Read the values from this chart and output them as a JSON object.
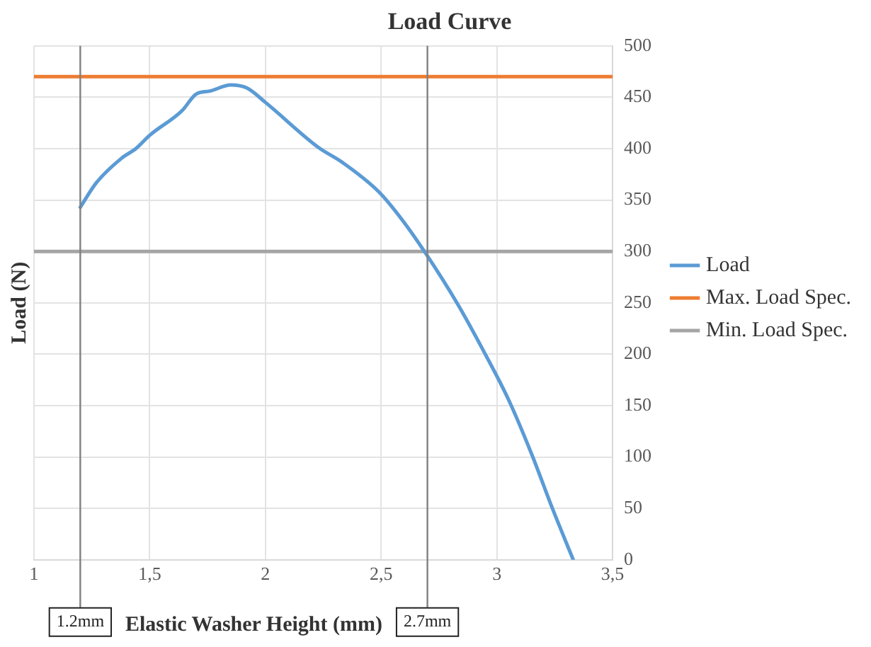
{
  "chart_data": {
    "type": "line",
    "title": "Load Curve",
    "xlabel": "Elastic Washer Height (mm)",
    "ylabel": "Load (N)",
    "xlim": [
      1,
      3.5
    ],
    "xticks": [
      1,
      {
        "value": 1.5,
        "label": "1,5"
      },
      2,
      {
        "value": 2.5,
        "label": "2,5"
      },
      3,
      {
        "value": 3.5,
        "label": "3,5"
      }
    ],
    "ylim": [
      0,
      500
    ],
    "yticks": [
      0,
      50,
      100,
      150,
      200,
      250,
      300,
      350,
      400,
      450,
      500
    ],
    "grid": true,
    "legend": "right",
    "marker": "none",
    "line_style": "solid",
    "series": [
      {
        "name": "Load",
        "color": "#5b9bd5",
        "x": [
          1.2,
          1.27,
          1.38,
          1.44,
          1.5,
          1.64,
          1.7,
          1.76,
          1.85,
          1.92,
          2.0,
          2.23,
          2.33,
          2.49,
          2.59,
          2.69,
          2.83,
          2.95,
          3.05,
          3.15,
          3.24,
          3.33
        ],
        "values": [
          343,
          367,
          391,
          400,
          413,
          437,
          453,
          456,
          462,
          459,
          445,
          401,
          387,
          358,
          331,
          299,
          249,
          200,
          156,
          103,
          50,
          0
        ]
      },
      {
        "name": "Max. Load Spec.",
        "color": "#ed7d31",
        "x": [
          1,
          3.5
        ],
        "values": [
          470,
          470
        ]
      },
      {
        "name": "Min. Load Spec.",
        "color": "#a5a5a5",
        "x": [
          1,
          3.5
        ],
        "values": [
          300,
          300
        ]
      }
    ],
    "ref_lines": [
      {
        "axis": "x",
        "value": 1.2,
        "label": "1.2mm",
        "color": "#808080"
      },
      {
        "axis": "x",
        "value": 2.7,
        "label": "2.7mm",
        "color": "#808080"
      }
    ]
  }
}
